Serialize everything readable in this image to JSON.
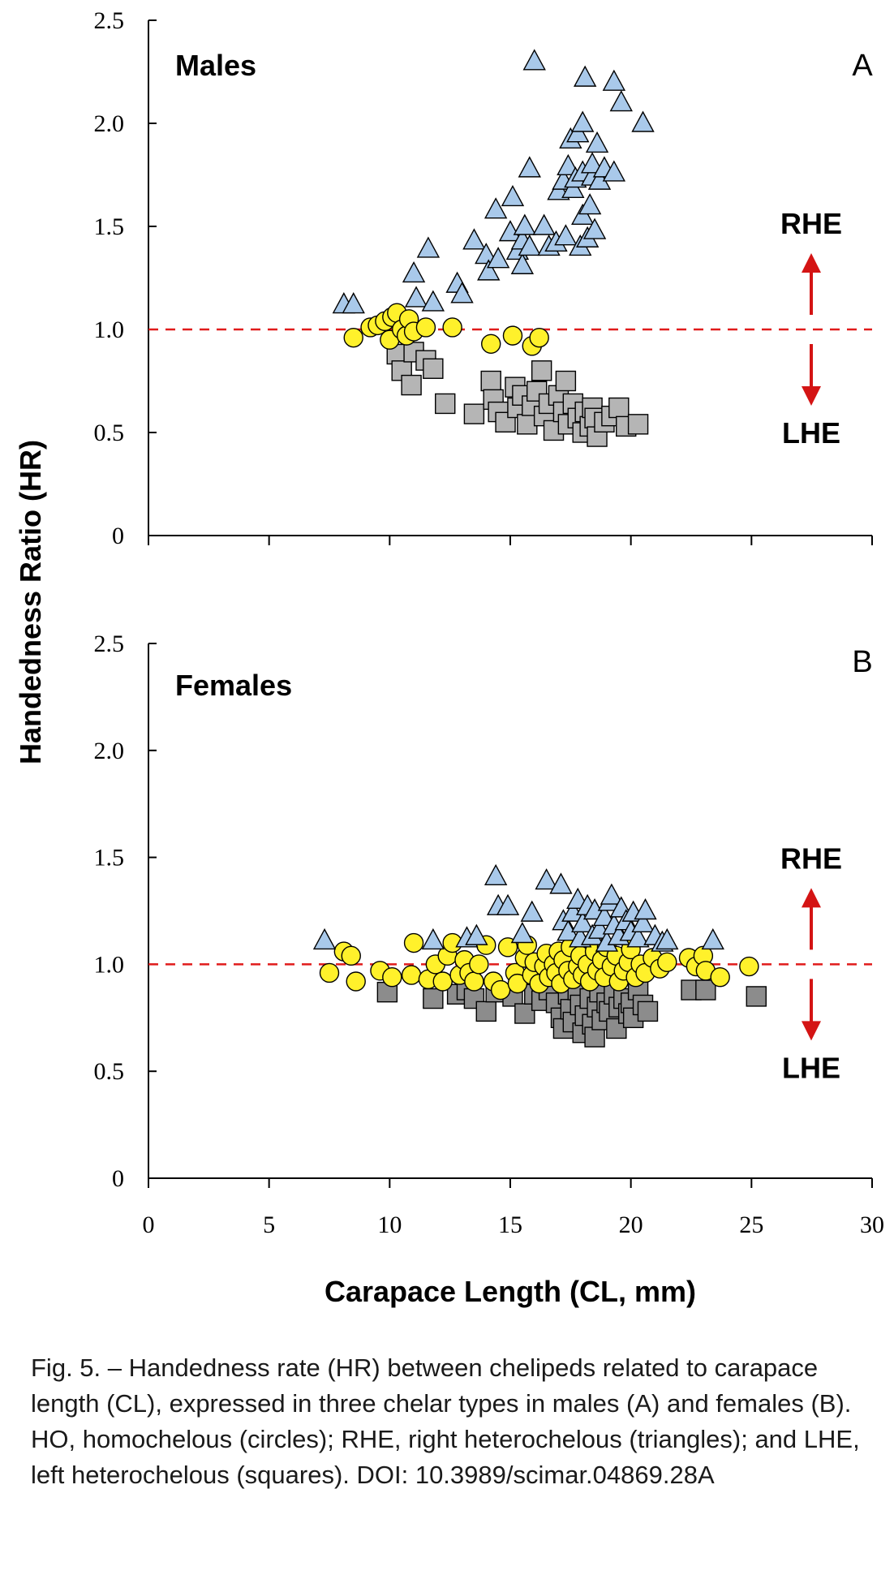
{
  "figure": {
    "ylabel": "Handedness Ratio (HR)",
    "xlabel": "Carapace Length (CL, mm)",
    "caption": "Fig. 5. – Handedness rate (HR) between chelipeds related to carapace length (CL), expressed in three chelar types in males (A) and females (B). HO, homochelous (circles); RHE, right heterochelous (triangles); and LHE, left heterochelous (squares). DOI: 10.3989/scimar.04869.28A"
  },
  "colors": {
    "triangle_fill": "#a9c9ea",
    "circle_fill": "#fff12b",
    "square_fill_male": "#b5b5b5",
    "square_fill_female": "#8c8c8c",
    "reference_line": "#e01b1b",
    "arrow": "#d41414"
  },
  "chart_data": [
    {
      "type": "scatter",
      "panel_letter": "A",
      "title": "Males",
      "xlim": [
        0,
        30
      ],
      "ylim": [
        0,
        2.5
      ],
      "xticks": [
        "0",
        "5",
        "10",
        "15",
        "20",
        "25",
        "30"
      ],
      "yticks": [
        "0",
        "0.5",
        "1.0",
        "1.5",
        "2.0",
        "2.5"
      ],
      "reference_line": 1.0,
      "annotations": {
        "up": "RHE",
        "down": "LHE"
      },
      "series": [
        {
          "marker": "triangle",
          "points": [
            [
              8.1,
              1.12
            ],
            [
              8.5,
              1.12
            ],
            [
              11.0,
              1.27
            ],
            [
              11.1,
              1.15
            ],
            [
              11.6,
              1.39
            ],
            [
              11.8,
              1.13
            ],
            [
              12.8,
              1.22
            ],
            [
              13.0,
              1.17
            ],
            [
              13.5,
              1.43
            ],
            [
              14.0,
              1.36
            ],
            [
              14.1,
              1.28
            ],
            [
              14.4,
              1.58
            ],
            [
              14.5,
              1.34
            ],
            [
              15.0,
              1.47
            ],
            [
              15.1,
              1.64
            ],
            [
              15.3,
              1.38
            ],
            [
              15.5,
              1.31
            ],
            [
              15.5,
              1.43
            ],
            [
              15.6,
              1.5
            ],
            [
              15.8,
              1.4
            ],
            [
              15.8,
              1.78
            ],
            [
              16.0,
              2.3
            ],
            [
              16.4,
              1.5
            ],
            [
              16.6,
              1.4
            ],
            [
              16.9,
              1.42
            ],
            [
              17.0,
              1.67
            ],
            [
              17.2,
              1.72
            ],
            [
              17.3,
              1.45
            ],
            [
              17.4,
              1.79
            ],
            [
              17.5,
              1.92
            ],
            [
              17.6,
              1.68
            ],
            [
              17.7,
              1.73
            ],
            [
              17.8,
              1.95
            ],
            [
              17.9,
              1.4
            ],
            [
              18.0,
              1.55
            ],
            [
              18.0,
              1.76
            ],
            [
              18.0,
              2.0
            ],
            [
              18.1,
              2.22
            ],
            [
              18.2,
              1.44
            ],
            [
              18.3,
              1.6
            ],
            [
              18.4,
              1.74
            ],
            [
              18.4,
              1.8
            ],
            [
              18.5,
              1.48
            ],
            [
              18.6,
              1.9
            ],
            [
              18.7,
              1.72
            ],
            [
              18.9,
              1.78
            ],
            [
              19.3,
              2.2
            ],
            [
              19.3,
              1.76
            ],
            [
              19.6,
              2.1
            ],
            [
              20.5,
              2.0
            ]
          ]
        },
        {
          "marker": "circle",
          "points": [
            [
              8.5,
              0.96
            ],
            [
              9.2,
              1.01
            ],
            [
              9.5,
              1.02
            ],
            [
              9.8,
              1.04
            ],
            [
              10.0,
              0.95
            ],
            [
              10.1,
              1.06
            ],
            [
              10.3,
              1.08
            ],
            [
              10.5,
              1.0
            ],
            [
              10.7,
              0.97
            ],
            [
              10.8,
              1.05
            ],
            [
              11.0,
              0.99
            ],
            [
              11.5,
              1.01
            ],
            [
              12.6,
              1.01
            ],
            [
              14.2,
              0.93
            ],
            [
              15.1,
              0.97
            ],
            [
              15.9,
              0.92
            ],
            [
              16.2,
              0.96
            ]
          ]
        },
        {
          "marker": "square",
          "points": [
            [
              10.3,
              0.88
            ],
            [
              10.5,
              0.8
            ],
            [
              10.9,
              0.73
            ],
            [
              11.0,
              0.89
            ],
            [
              11.5,
              0.85
            ],
            [
              11.8,
              0.81
            ],
            [
              12.3,
              0.64
            ],
            [
              13.5,
              0.59
            ],
            [
              14.2,
              0.75
            ],
            [
              14.3,
              0.66
            ],
            [
              14.5,
              0.6
            ],
            [
              14.8,
              0.55
            ],
            [
              15.2,
              0.72
            ],
            [
              15.3,
              0.62
            ],
            [
              15.5,
              0.68
            ],
            [
              15.7,
              0.54
            ],
            [
              15.9,
              0.63
            ],
            [
              16.1,
              0.7
            ],
            [
              16.3,
              0.8
            ],
            [
              16.4,
              0.58
            ],
            [
              16.6,
              0.64
            ],
            [
              16.8,
              0.51
            ],
            [
              17.0,
              0.68
            ],
            [
              17.2,
              0.6
            ],
            [
              17.3,
              0.75
            ],
            [
              17.4,
              0.54
            ],
            [
              17.6,
              0.64
            ],
            [
              17.8,
              0.57
            ],
            [
              18.0,
              0.5
            ],
            [
              18.1,
              0.6
            ],
            [
              18.3,
              0.53
            ],
            [
              18.4,
              0.62
            ],
            [
              18.5,
              0.57
            ],
            [
              18.6,
              0.48
            ],
            [
              18.9,
              0.55
            ],
            [
              19.2,
              0.58
            ],
            [
              19.5,
              0.62
            ],
            [
              19.8,
              0.53
            ],
            [
              20.3,
              0.54
            ]
          ]
        }
      ]
    },
    {
      "type": "scatter",
      "panel_letter": "B",
      "title": "Females",
      "xlim": [
        0,
        30
      ],
      "ylim": [
        0,
        2.5
      ],
      "xticks": [
        "0",
        "5",
        "10",
        "15",
        "20",
        "25",
        "30"
      ],
      "yticks": [
        "0",
        "0.5",
        "1.0",
        "1.5",
        "2.0",
        "2.5"
      ],
      "reference_line": 1.0,
      "annotations": {
        "up": "RHE",
        "down": "LHE"
      },
      "series": [
        {
          "marker": "triangle",
          "points": [
            [
              7.3,
              1.11
            ],
            [
              11.8,
              1.11
            ],
            [
              13.2,
              1.12
            ],
            [
              13.6,
              1.13
            ],
            [
              14.4,
              1.41
            ],
            [
              14.5,
              1.27
            ],
            [
              14.9,
              1.27
            ],
            [
              15.5,
              1.14
            ],
            [
              15.9,
              1.24
            ],
            [
              16.5,
              1.39
            ],
            [
              17.1,
              1.37
            ],
            [
              17.2,
              1.2
            ],
            [
              17.4,
              1.15
            ],
            [
              17.6,
              1.24
            ],
            [
              17.8,
              1.3
            ],
            [
              17.9,
              1.12
            ],
            [
              18.0,
              1.19
            ],
            [
              18.2,
              1.27
            ],
            [
              18.4,
              1.13
            ],
            [
              18.5,
              1.25
            ],
            [
              18.7,
              1.16
            ],
            [
              18.9,
              1.22
            ],
            [
              19.0,
              1.1
            ],
            [
              19.1,
              1.29
            ],
            [
              19.2,
              1.32
            ],
            [
              19.3,
              1.18
            ],
            [
              19.5,
              1.13
            ],
            [
              19.6,
              1.26
            ],
            [
              19.8,
              1.2
            ],
            [
              20.0,
              1.15
            ],
            [
              20.1,
              1.24
            ],
            [
              20.3,
              1.12
            ],
            [
              20.5,
              1.19
            ],
            [
              20.6,
              1.25
            ],
            [
              21.0,
              1.13
            ],
            [
              21.3,
              1.1
            ],
            [
              21.5,
              1.11
            ],
            [
              23.4,
              1.11
            ]
          ]
        },
        {
          "marker": "circle",
          "points": [
            [
              7.5,
              0.96
            ],
            [
              8.1,
              1.06
            ],
            [
              8.4,
              1.04
            ],
            [
              8.6,
              0.92
            ],
            [
              9.6,
              0.97
            ],
            [
              10.1,
              0.94
            ],
            [
              10.9,
              0.95
            ],
            [
              11.0,
              1.1
            ],
            [
              11.6,
              0.93
            ],
            [
              11.9,
              1.0
            ],
            [
              12.2,
              0.92
            ],
            [
              12.4,
              1.04
            ],
            [
              12.6,
              1.1
            ],
            [
              12.9,
              0.95
            ],
            [
              13.1,
              1.02
            ],
            [
              13.3,
              0.96
            ],
            [
              13.5,
              0.92
            ],
            [
              13.7,
              1.0
            ],
            [
              14.0,
              1.09
            ],
            [
              14.3,
              0.92
            ],
            [
              14.6,
              0.88
            ],
            [
              14.9,
              1.08
            ],
            [
              15.2,
              0.96
            ],
            [
              15.3,
              0.91
            ],
            [
              15.6,
              1.03
            ],
            [
              15.7,
              1.09
            ],
            [
              15.9,
              0.95
            ],
            [
              16.0,
              1.01
            ],
            [
              16.2,
              0.91
            ],
            [
              16.4,
              0.99
            ],
            [
              16.5,
              1.05
            ],
            [
              16.6,
              0.94
            ],
            [
              16.8,
              1.0
            ],
            [
              16.9,
              0.96
            ],
            [
              17.0,
              1.06
            ],
            [
              17.1,
              0.91
            ],
            [
              17.2,
              1.02
            ],
            [
              17.4,
              0.97
            ],
            [
              17.5,
              1.08
            ],
            [
              17.6,
              0.93
            ],
            [
              17.8,
              0.99
            ],
            [
              17.9,
              1.04
            ],
            [
              18.0,
              0.95
            ],
            [
              18.2,
              1.0
            ],
            [
              18.3,
              0.92
            ],
            [
              18.5,
              1.06
            ],
            [
              18.6,
              0.97
            ],
            [
              18.8,
              1.02
            ],
            [
              18.9,
              0.94
            ],
            [
              19.0,
              1.08
            ],
            [
              19.2,
              0.99
            ],
            [
              19.4,
              1.04
            ],
            [
              19.5,
              0.92
            ],
            [
              19.7,
              0.97
            ],
            [
              19.9,
              1.01
            ],
            [
              20.0,
              1.07
            ],
            [
              20.2,
              0.94
            ],
            [
              20.4,
              1.0
            ],
            [
              20.6,
              0.96
            ],
            [
              20.9,
              1.03
            ],
            [
              21.2,
              0.98
            ],
            [
              21.5,
              1.01
            ],
            [
              22.4,
              1.03
            ],
            [
              22.7,
              0.99
            ],
            [
              23.0,
              1.04
            ],
            [
              23.1,
              0.97
            ],
            [
              23.7,
              0.94
            ],
            [
              24.9,
              0.99
            ]
          ]
        },
        {
          "marker": "square",
          "points": [
            [
              9.9,
              0.87
            ],
            [
              11.8,
              0.84
            ],
            [
              12.8,
              0.86
            ],
            [
              13.2,
              0.88
            ],
            [
              13.5,
              0.84
            ],
            [
              14.0,
              0.78
            ],
            [
              14.4,
              0.87
            ],
            [
              15.1,
              0.85
            ],
            [
              15.6,
              0.77
            ],
            [
              16.0,
              0.86
            ],
            [
              16.3,
              0.83
            ],
            [
              16.6,
              0.88
            ],
            [
              16.9,
              0.82
            ],
            [
              17.1,
              0.75
            ],
            [
              17.2,
              0.7
            ],
            [
              17.4,
              0.86
            ],
            [
              17.5,
              0.79
            ],
            [
              17.6,
              0.73
            ],
            [
              17.8,
              0.88
            ],
            [
              17.9,
              0.81
            ],
            [
              18.0,
              0.68
            ],
            [
              18.1,
              0.76
            ],
            [
              18.3,
              0.84
            ],
            [
              18.4,
              0.72
            ],
            [
              18.5,
              0.66
            ],
            [
              18.6,
              0.8
            ],
            [
              18.7,
              0.87
            ],
            [
              18.8,
              0.74
            ],
            [
              19.0,
              0.82
            ],
            [
              19.1,
              0.78
            ],
            [
              19.3,
              0.86
            ],
            [
              19.4,
              0.7
            ],
            [
              19.5,
              0.8
            ],
            [
              19.7,
              0.84
            ],
            [
              19.9,
              0.77
            ],
            [
              20.0,
              0.82
            ],
            [
              20.1,
              0.75
            ],
            [
              20.3,
              0.88
            ],
            [
              20.5,
              0.81
            ],
            [
              20.7,
              0.78
            ],
            [
              22.5,
              0.88
            ],
            [
              23.1,
              0.88
            ],
            [
              25.2,
              0.85
            ]
          ]
        }
      ]
    }
  ]
}
